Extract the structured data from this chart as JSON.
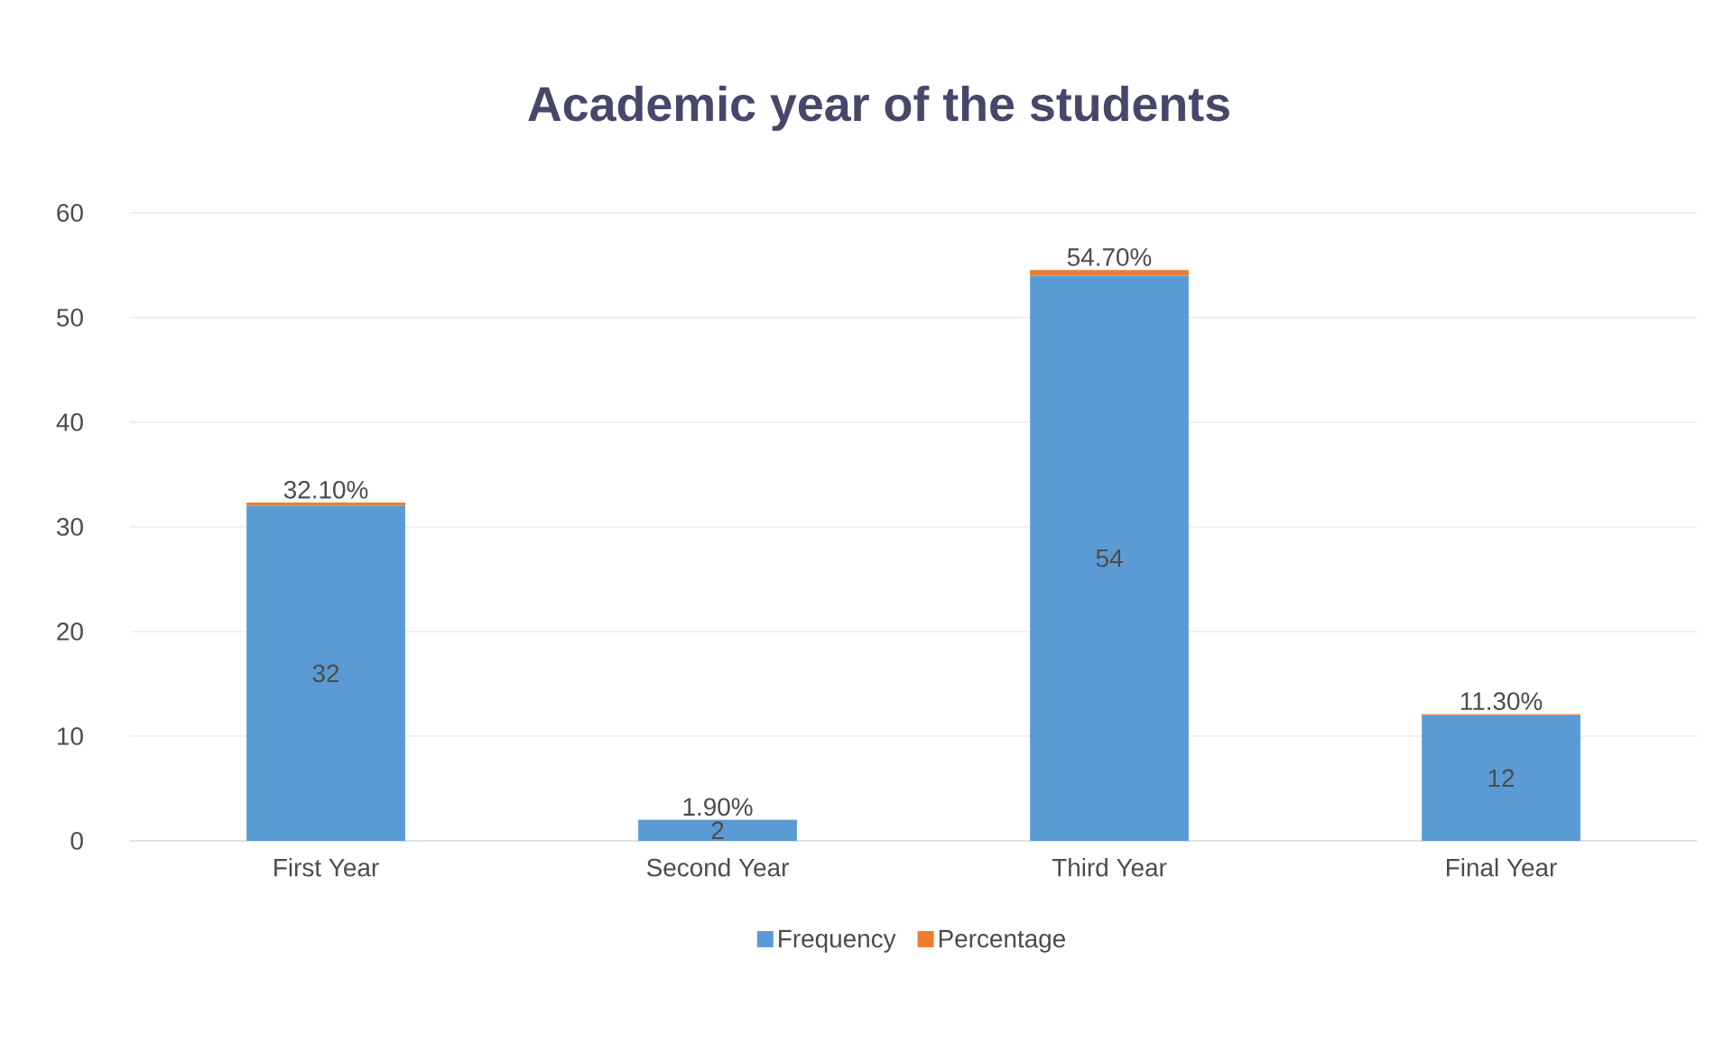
{
  "chart_data": {
    "type": "bar",
    "title": "Academic year of the students",
    "stacked": true,
    "categories": [
      "First Year",
      "Second Year",
      "Third Year",
      "Final Year"
    ],
    "series": [
      {
        "name": "Frequency",
        "color": "#5b9bd5",
        "values": [
          32,
          2,
          54,
          12
        ],
        "value_labels": [
          "32",
          "2",
          "54",
          "12"
        ]
      },
      {
        "name": "Percentage",
        "color": "#ed7d31",
        "values": [
          0.321,
          0.019,
          0.547,
          0.113
        ],
        "value_labels": [
          "32.10%",
          "1.90%",
          "54.70%",
          "11.30%"
        ]
      }
    ],
    "ylim": [
      0,
      60
    ],
    "yticks": [
      0,
      10,
      20,
      30,
      40,
      50,
      60
    ],
    "grid": "y",
    "legend": "bottom"
  }
}
